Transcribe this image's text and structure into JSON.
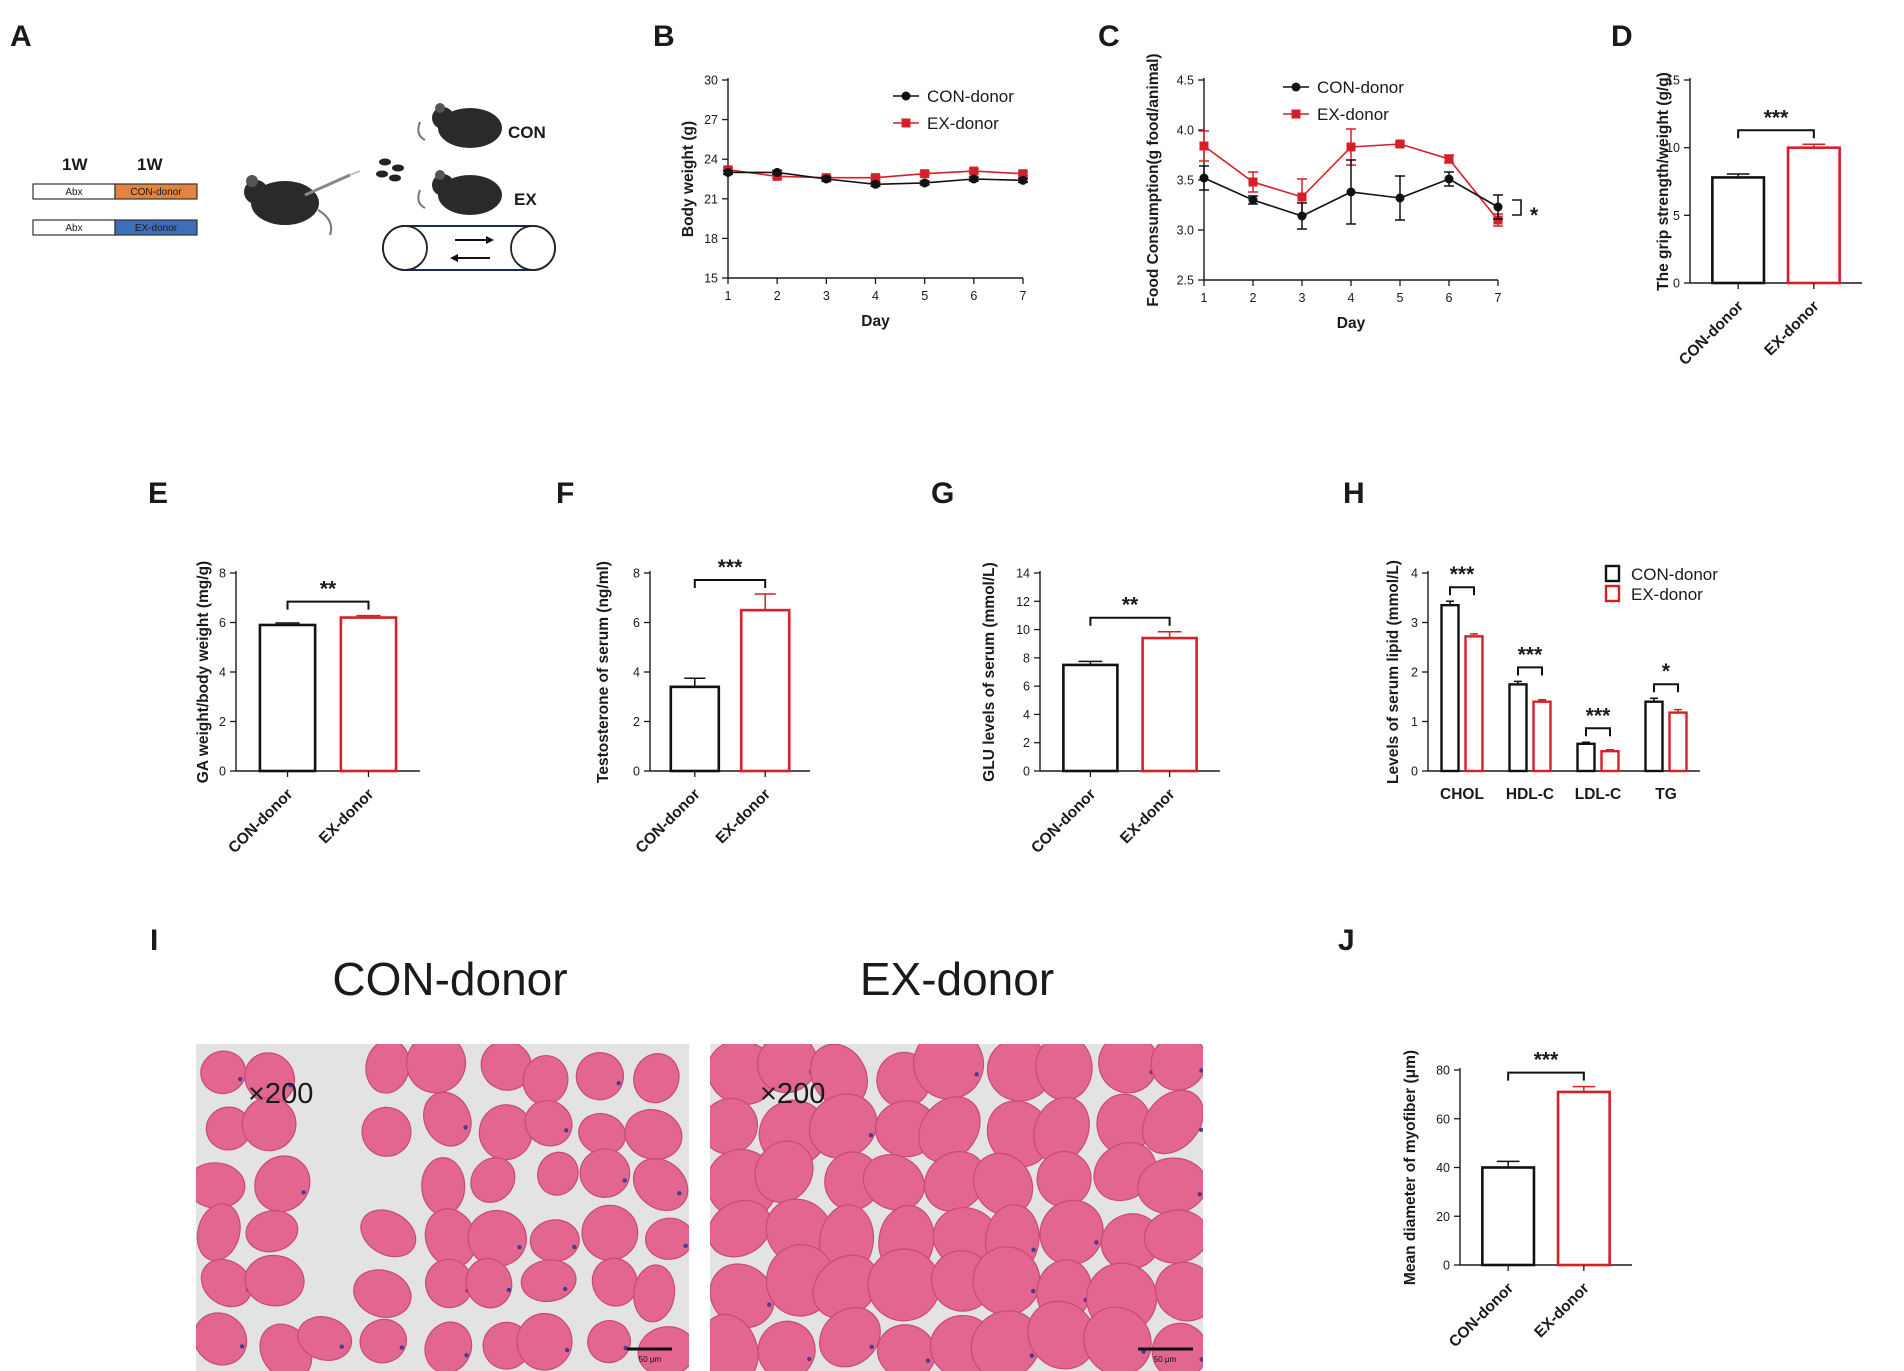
{
  "colors": {
    "con": "#111111",
    "ex": "#d62027",
    "muscle": "#e2668f",
    "muscle_dark": "#c84a78",
    "gap": "#e3e3e3",
    "nuclei": "#4b3b8c",
    "abx": "#ffffff",
    "con_donor_box": "#e2843e",
    "ex_donor_box": "#3f6eb8"
  },
  "panel_a": {
    "letter": "A",
    "week1": "1W",
    "week2": "1W",
    "abx1": "Abx",
    "abx2": "Abx",
    "con_box": "CON-donor",
    "ex_box": "EX-donor",
    "con_label": "CON",
    "ex_label": "EX"
  },
  "panel_i": {
    "letter": "I",
    "con_title": "CON-donor",
    "ex_title": "EX-donor",
    "con_mag": "×200",
    "ex_mag": "×200",
    "con_scale": "50 μm",
    "ex_scale": "50 μm"
  },
  "chart_data": [
    {
      "id": "B",
      "letter": "B",
      "type": "line",
      "ylabel": "Body  weight (g)",
      "xlabel": "Day",
      "x": [
        1,
        2,
        3,
        4,
        5,
        6,
        7
      ],
      "xticks": [
        "1",
        "2",
        "3",
        "4",
        "5",
        "6",
        "7"
      ],
      "yticks": [
        "15",
        "18",
        "21",
        "24",
        "27",
        "30"
      ],
      "yrange": [
        15,
        30
      ],
      "series": [
        {
          "name": "CON-donor",
          "values": [
            23.0,
            23.0,
            22.5,
            22.1,
            22.2,
            22.5,
            22.4
          ],
          "err": [
            0.15,
            0.15,
            0.15,
            0.15,
            0.15,
            0.15,
            0.15
          ]
        },
        {
          "name": "EX-donor",
          "values": [
            23.2,
            22.7,
            22.6,
            22.6,
            22.9,
            23.1,
            22.9
          ],
          "err": [
            0.15,
            0.15,
            0.15,
            0.15,
            0.15,
            0.15,
            0.15
          ]
        }
      ]
    },
    {
      "id": "C",
      "letter": "C",
      "type": "line",
      "ylabel": "Food Consumption(g food/animal)",
      "xlabel": "Day",
      "x": [
        1,
        2,
        3,
        4,
        5,
        6,
        7
      ],
      "xticks": [
        "1",
        "2",
        "3",
        "4",
        "5",
        "6",
        "7"
      ],
      "yticks": [
        "2.5",
        "3.0",
        "3.5",
        "4.0",
        "4.5"
      ],
      "yrange": [
        2.5,
        4.5
      ],
      "series": [
        {
          "name": "CON-donor",
          "values": [
            3.52,
            3.3,
            3.14,
            3.38,
            3.32,
            3.51,
            3.23
          ],
          "err": [
            0.12,
            0.04,
            0.13,
            0.32,
            0.22,
            0.07,
            0.12
          ]
        },
        {
          "name": "EX-donor",
          "values": [
            3.84,
            3.48,
            3.33,
            3.83,
            3.86,
            3.71,
            3.1
          ],
          "err": [
            0.15,
            0.1,
            0.18,
            0.18,
            0.02,
            0.04,
            0.06
          ]
        }
      ],
      "significance": "*"
    },
    {
      "id": "D",
      "letter": "D",
      "type": "bar",
      "ylabel": "The grip strength/weight (g/g)",
      "categories": [
        "CON-donor",
        "EX-donor"
      ],
      "yticks": [
        "0",
        "5",
        "10",
        "15"
      ],
      "yrange": [
        0,
        15
      ],
      "values": [
        7.8,
        10.0
      ],
      "err": [
        0.25,
        0.25
      ],
      "significance": "***"
    },
    {
      "id": "E",
      "letter": "E",
      "type": "bar",
      "ylabel": "GA weight/body weight (mg/g)",
      "categories": [
        "CON-donor",
        "EX-donor"
      ],
      "yticks": [
        "0",
        "2",
        "4",
        "6",
        "8"
      ],
      "yrange": [
        0,
        8
      ],
      "values": [
        5.9,
        6.2
      ],
      "err": [
        0.08,
        0.08
      ],
      "significance": "**"
    },
    {
      "id": "F",
      "letter": "F",
      "type": "bar",
      "ylabel": "Testosterone of serum (ng/ml)",
      "categories": [
        "CON-donor",
        "EX-donor"
      ],
      "yticks": [
        "0",
        "2",
        "4",
        "6",
        "8"
      ],
      "yrange": [
        0,
        8
      ],
      "values": [
        3.4,
        6.5
      ],
      "err": [
        0.35,
        0.65
      ],
      "significance": "***"
    },
    {
      "id": "G",
      "letter": "G",
      "type": "bar",
      "ylabel": "GLU levels of serum (mmol/L)",
      "categories": [
        "CON-donor",
        "EX-donor"
      ],
      "yticks": [
        "0",
        "2",
        "4",
        "6",
        "8",
        "10",
        "12",
        "14"
      ],
      "yrange": [
        0,
        14
      ],
      "values": [
        7.5,
        9.4
      ],
      "err": [
        0.25,
        0.45
      ],
      "significance": "**"
    },
    {
      "id": "H",
      "letter": "H",
      "type": "bar",
      "ylabel": "Levels of serum lipid (mmol/L)",
      "categories": [
        "CHOL",
        "HDL-C",
        "LDL-C",
        "TG"
      ],
      "yticks": [
        "0",
        "1",
        "2",
        "3",
        "4"
      ],
      "yrange": [
        0,
        4
      ],
      "series": [
        {
          "name": "CON-donor",
          "values": [
            3.35,
            1.75,
            0.55,
            1.4
          ],
          "err": [
            0.08,
            0.06,
            0.03,
            0.07
          ]
        },
        {
          "name": "EX-donor",
          "values": [
            2.72,
            1.4,
            0.4,
            1.18
          ],
          "err": [
            0.05,
            0.04,
            0.03,
            0.06
          ]
        }
      ],
      "significance": [
        "***",
        "***",
        "***",
        "*"
      ]
    },
    {
      "id": "J",
      "letter": "J",
      "type": "bar",
      "ylabel": "Mean diameter of myofiber (μm)",
      "categories": [
        "CON-donor",
        "EX-donor"
      ],
      "yticks": [
        "0",
        "20",
        "40",
        "60",
        "80"
      ],
      "yrange": [
        0,
        80
      ],
      "values": [
        40,
        71
      ],
      "err": [
        2.5,
        2.2
      ],
      "significance": "***"
    }
  ]
}
